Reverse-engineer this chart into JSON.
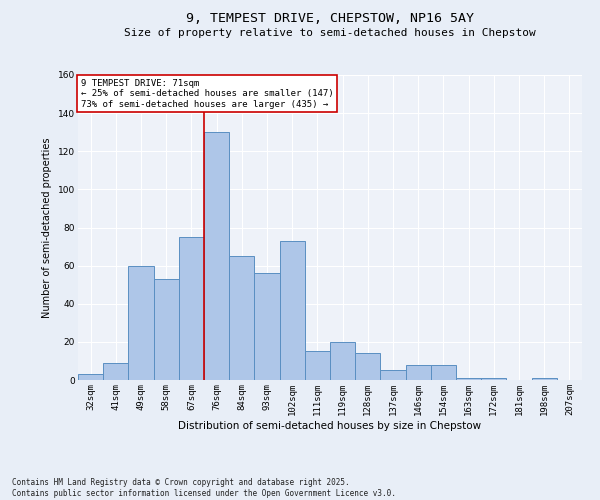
{
  "title1": "9, TEMPEST DRIVE, CHEPSTOW, NP16 5AY",
  "title2": "Size of property relative to semi-detached houses in Chepstow",
  "xlabel": "Distribution of semi-detached houses by size in Chepstow",
  "ylabel": "Number of semi-detached properties",
  "categories": [
    "32sqm",
    "41sqm",
    "49sqm",
    "58sqm",
    "67sqm",
    "76sqm",
    "84sqm",
    "93sqm",
    "102sqm",
    "111sqm",
    "119sqm",
    "128sqm",
    "137sqm",
    "146sqm",
    "154sqm",
    "163sqm",
    "172sqm",
    "181sqm",
    "198sqm",
    "207sqm"
  ],
  "values": [
    3,
    9,
    60,
    53,
    75,
    130,
    65,
    56,
    73,
    15,
    20,
    14,
    5,
    8,
    8,
    1,
    1,
    0,
    1,
    0
  ],
  "bar_color": "#aec6e8",
  "bar_edge_color": "#5a8fc2",
  "red_line_x": 4.5,
  "red_line_color": "#cc0000",
  "annotation_text": "9 TEMPEST DRIVE: 71sqm\n← 25% of semi-detached houses are smaller (147)\n73% of semi-detached houses are larger (435) →",
  "annotation_box_color": "#ffffff",
  "annotation_box_edge": "#cc0000",
  "ylim": [
    0,
    160
  ],
  "yticks": [
    0,
    20,
    40,
    60,
    80,
    100,
    120,
    140,
    160
  ],
  "footer": "Contains HM Land Registry data © Crown copyright and database right 2025.\nContains public sector information licensed under the Open Government Licence v3.0.",
  "bg_color": "#e8eef7",
  "plot_bg_color": "#eef2f9",
  "grid_color": "#ffffff",
  "title1_fontsize": 9.5,
  "title2_fontsize": 8,
  "xlabel_fontsize": 7.5,
  "ylabel_fontsize": 7,
  "tick_fontsize": 6.5,
  "annot_fontsize": 6.5,
  "footer_fontsize": 5.5
}
